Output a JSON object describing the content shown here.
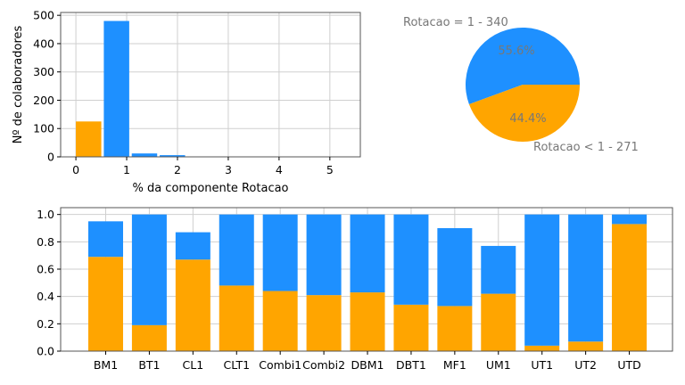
{
  "colors": {
    "orange": "#FFA500",
    "blue": "#1E90FF"
  },
  "chart_data": [
    {
      "type": "bar",
      "subtype": "histogram",
      "xlabel": "% da componente Rotacao",
      "ylabel": "Nº de colaboradores",
      "xlim": [
        -0.3,
        5.6
      ],
      "ylim": [
        0,
        510
      ],
      "xticks": [
        0,
        1,
        2,
        3,
        4,
        5
      ],
      "yticks": [
        0,
        100,
        200,
        300,
        400,
        500
      ],
      "grid": true,
      "bins": [
        {
          "x0": 0.0,
          "x1": 0.5,
          "count": 125,
          "series": "orange"
        },
        {
          "x0": 0.55,
          "x1": 1.05,
          "count": 480,
          "series": "blue"
        },
        {
          "x0": 1.1,
          "x1": 1.6,
          "count": 12,
          "series": "blue"
        },
        {
          "x0": 1.65,
          "x1": 2.15,
          "count": 6,
          "series": "blue"
        }
      ]
    },
    {
      "type": "pie",
      "slices": [
        {
          "label": "Rotacao = 1 - 340",
          "percent_label": "55.6%",
          "value": 55.6,
          "color": "blue"
        },
        {
          "label": "Rotacao < 1 - 271",
          "percent_label": "44.4%",
          "value": 44.4,
          "color": "orange"
        }
      ]
    },
    {
      "type": "bar",
      "subtype": "stacked",
      "categories": [
        "BM1",
        "BT1",
        "CL1",
        "CLT1",
        "Combi1",
        "Combi2",
        "DBM1",
        "DBT1",
        "MF1",
        "UM1",
        "UT1",
        "UT2",
        "UTD"
      ],
      "ylim": [
        0,
        1.05
      ],
      "yticks": [
        "0.0",
        "0.2",
        "0.4",
        "0.6",
        "0.8",
        "1.0"
      ],
      "grid": true,
      "series": [
        {
          "color": "orange",
          "values": [
            0.69,
            0.19,
            0.67,
            0.48,
            0.44,
            0.41,
            0.43,
            0.34,
            0.33,
            0.42,
            0.04,
            0.07,
            0.93
          ]
        },
        {
          "color": "blue",
          "values": [
            0.26,
            0.81,
            0.2,
            0.52,
            0.56,
            0.59,
            0.57,
            0.66,
            0.57,
            0.35,
            0.96,
            0.93,
            0.07
          ]
        }
      ]
    }
  ]
}
